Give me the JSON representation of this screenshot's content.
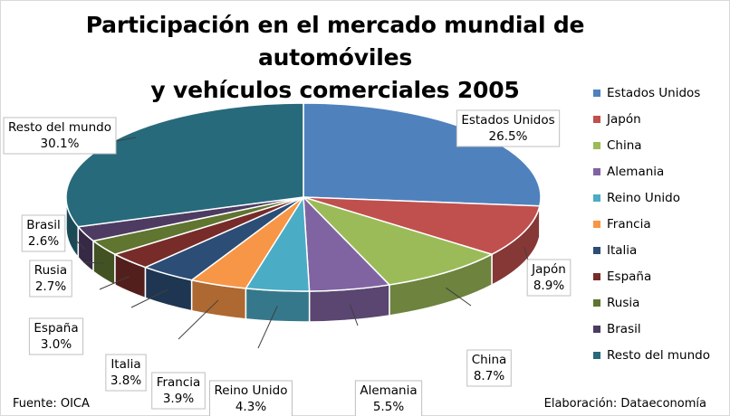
{
  "chart_data": {
    "type": "pie",
    "title": "Participación en el mercado mundial de automóviles y vehículos comerciales 2005",
    "title_lines": [
      "Participación en el mercado mundial de automóviles",
      "y vehículos comerciales 2005"
    ],
    "style": "3d-exploded",
    "legend_position": "right",
    "slices": [
      {
        "label": "Estados Unidos",
        "value": 26.5,
        "value_label": "26.5%",
        "color": "#4f81bd"
      },
      {
        "label": "Japón",
        "value": 8.9,
        "value_label": "8.9%",
        "color": "#c0504d"
      },
      {
        "label": "China",
        "value": 8.7,
        "value_label": "8.7%",
        "color": "#9bbb59"
      },
      {
        "label": "Alemania",
        "value": 5.5,
        "value_label": "5.5%",
        "color": "#8064a2"
      },
      {
        "label": "Reino Unido",
        "value": 4.3,
        "value_label": "4.3%",
        "color": "#4bacc6"
      },
      {
        "label": "Francia",
        "value": 3.9,
        "value_label": "3.9%",
        "color": "#f79646"
      },
      {
        "label": "Italia",
        "value": 3.8,
        "value_label": "3.8%",
        "color": "#2c4d75"
      },
      {
        "label": "España",
        "value": 3.0,
        "value_label": "3.0%",
        "color": "#772c2a"
      },
      {
        "label": "Rusia",
        "value": 2.7,
        "value_label": "2.7%",
        "color": "#5f7530"
      },
      {
        "label": "Brasil",
        "value": 2.6,
        "value_label": "2.6%",
        "color": "#4d3b62"
      },
      {
        "label": "Resto del mundo",
        "value": 30.1,
        "value_label": "30.1%",
        "color": "#276a7c"
      }
    ]
  },
  "footer": {
    "source": "Fuente: OICA",
    "credit": "Elaboración: Dataeconomía"
  }
}
